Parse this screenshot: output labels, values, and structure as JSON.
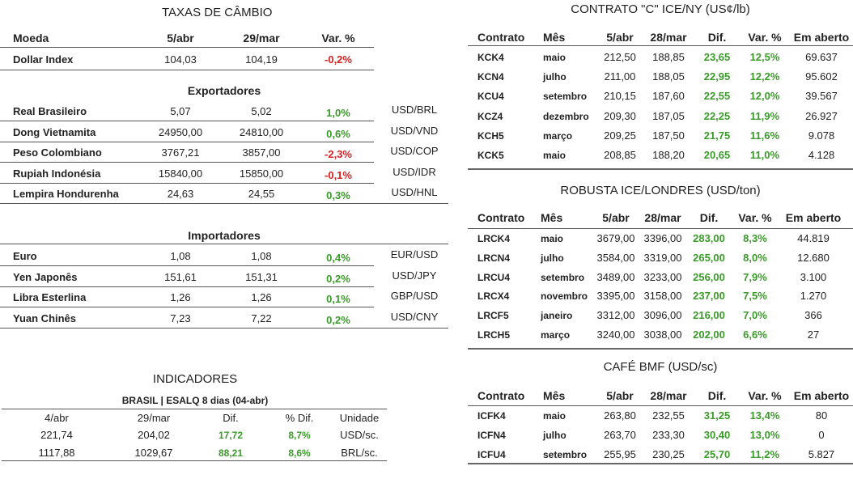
{
  "fx": {
    "title": "TAXAS DE CÂMBIO",
    "headers": [
      "Moeda",
      "5/abr",
      "29/mar",
      "Var. %"
    ],
    "dollar_index": {
      "name": "Dollar Index",
      "v1": "104,03",
      "v2": "104,19",
      "var": "-0,2%",
      "dir": "neg"
    },
    "exporters_title": "Exportadores",
    "exporters": [
      {
        "name": "Real Brasileiro",
        "v1": "5,07",
        "v2": "5,02",
        "var": "1,0%",
        "dir": "pos",
        "pair": "USD/BRL"
      },
      {
        "name": "Dong Vietnamita",
        "v1": "24950,00",
        "v2": "24810,00",
        "var": "0,6%",
        "dir": "pos",
        "pair": "USD/VND"
      },
      {
        "name": "Peso Colombiano",
        "v1": "3767,21",
        "v2": "3857,00",
        "var": "-2,3%",
        "dir": "neg",
        "pair": "USD/COP"
      },
      {
        "name": "Rupiah Indonésia",
        "v1": "15840,00",
        "v2": "15850,00",
        "var": "-0,1%",
        "dir": "neg",
        "pair": "USD/IDR"
      },
      {
        "name": "Lempira Hondurenha",
        "v1": "24,63",
        "v2": "24,55",
        "var": "0,3%",
        "dir": "pos",
        "pair": "USD/HNL"
      }
    ],
    "importers_title": "Importadores",
    "importers": [
      {
        "name": "Euro",
        "v1": "1,08",
        "v2": "1,08",
        "var": "0,4%",
        "dir": "pos",
        "pair": "EUR/USD"
      },
      {
        "name": "Yen Japonês",
        "v1": "151,61",
        "v2": "151,31",
        "var": "0,2%",
        "dir": "pos",
        "pair": "USD/JPY"
      },
      {
        "name": "Libra Esterlina",
        "v1": "1,26",
        "v2": "1,26",
        "var": "0,1%",
        "dir": "pos",
        "pair": "GBP/USD"
      },
      {
        "name": "Yuan Chinês",
        "v1": "7,23",
        "v2": "7,22",
        "var": "0,2%",
        "dir": "pos",
        "pair": "USD/CNY"
      }
    ]
  },
  "indicators": {
    "title": "INDICADORES",
    "subtitle": "BRASIL | ESALQ 8 dias (04-abr)",
    "headers": [
      "4/abr",
      "29/mar",
      "Dif.",
      "% Dif.",
      "Unidade"
    ],
    "rows": [
      {
        "v1": "221,74",
        "v2": "204,02",
        "dif": "17,72",
        "pct": "8,7%",
        "unit": "USD/sc."
      },
      {
        "v1": "1117,88",
        "v2": "1029,67",
        "dif": "88,21",
        "pct": "8,6%",
        "unit": "BRL/sc."
      }
    ]
  },
  "ice_ny": {
    "title": "CONTRATO \"C\" ICE/NY (US¢/lb)",
    "headers": [
      "Contrato",
      "Mês",
      "5/abr",
      "28/mar",
      "Dif.",
      "Var. %",
      "Em aberto"
    ],
    "rows": [
      {
        "c": "KCK4",
        "m": "maio",
        "v1": "212,50",
        "v2": "188,85",
        "dif": "23,65",
        "var": "12,5%",
        "oi": "69.637"
      },
      {
        "c": "KCN4",
        "m": "julho",
        "v1": "211,00",
        "v2": "188,05",
        "dif": "22,95",
        "var": "12,2%",
        "oi": "95.602"
      },
      {
        "c": "KCU4",
        "m": "setembro",
        "v1": "210,15",
        "v2": "187,60",
        "dif": "22,55",
        "var": "12,0%",
        "oi": "39.567"
      },
      {
        "c": "KCZ4",
        "m": "dezembro",
        "v1": "209,30",
        "v2": "187,05",
        "dif": "22,25",
        "var": "11,9%",
        "oi": "26.927"
      },
      {
        "c": "KCH5",
        "m": "março",
        "v1": "209,25",
        "v2": "187,50",
        "dif": "21,75",
        "var": "11,6%",
        "oi": "9.078"
      },
      {
        "c": "KCK5",
        "m": "maio",
        "v1": "208,85",
        "v2": "188,20",
        "dif": "20,65",
        "var": "11,0%",
        "oi": "4.128"
      }
    ]
  },
  "robusta": {
    "title": "ROBUSTA ICE/LONDRES (USD/ton)",
    "headers": [
      "Contrato",
      "Mês",
      "5/abr",
      "28/mar",
      "Dif.",
      "Var. %",
      "Em aberto"
    ],
    "rows": [
      {
        "c": "LRCK4",
        "m": "maio",
        "v1": "3679,00",
        "v2": "3396,00",
        "dif": "283,00",
        "var": "8,3%",
        "oi": "44.819"
      },
      {
        "c": "LRCN4",
        "m": "julho",
        "v1": "3584,00",
        "v2": "3319,00",
        "dif": "265,00",
        "var": "8,0%",
        "oi": "12.680"
      },
      {
        "c": "LRCU4",
        "m": "setembro",
        "v1": "3489,00",
        "v2": "3233,00",
        "dif": "256,00",
        "var": "7,9%",
        "oi": "3.100"
      },
      {
        "c": "LRCX4",
        "m": "novembro",
        "v1": "3395,00",
        "v2": "3158,00",
        "dif": "237,00",
        "var": "7,5%",
        "oi": "1.270"
      },
      {
        "c": "LRCF5",
        "m": "janeiro",
        "v1": "3312,00",
        "v2": "3096,00",
        "dif": "216,00",
        "var": "7,0%",
        "oi": "366"
      },
      {
        "c": "LRCH5",
        "m": "março",
        "v1": "3240,00",
        "v2": "3038,00",
        "dif": "202,00",
        "var": "6,6%",
        "oi": "27"
      }
    ]
  },
  "bmf": {
    "title": "CAFÉ BMF (USD/sc)",
    "headers": [
      "Contrato",
      "Mês",
      "5/abr",
      "28/mar",
      "Dif.",
      "Var. %",
      "Em aberto"
    ],
    "rows": [
      {
        "c": "ICFK4",
        "m": "maio",
        "v1": "263,80",
        "v2": "232,55",
        "dif": "31,25",
        "var": "13,4%",
        "oi": "80"
      },
      {
        "c": "ICFN4",
        "m": "julho",
        "v1": "263,70",
        "v2": "233,30",
        "dif": "30,40",
        "var": "13,0%",
        "oi": "0"
      },
      {
        "c": "ICFU4",
        "m": "setembro",
        "v1": "255,95",
        "v2": "230,25",
        "dif": "25,70",
        "var": "11,2%",
        "oi": "5.827"
      }
    ]
  },
  "colors": {
    "positive": "#3a9a2a",
    "negative": "#d42020"
  }
}
